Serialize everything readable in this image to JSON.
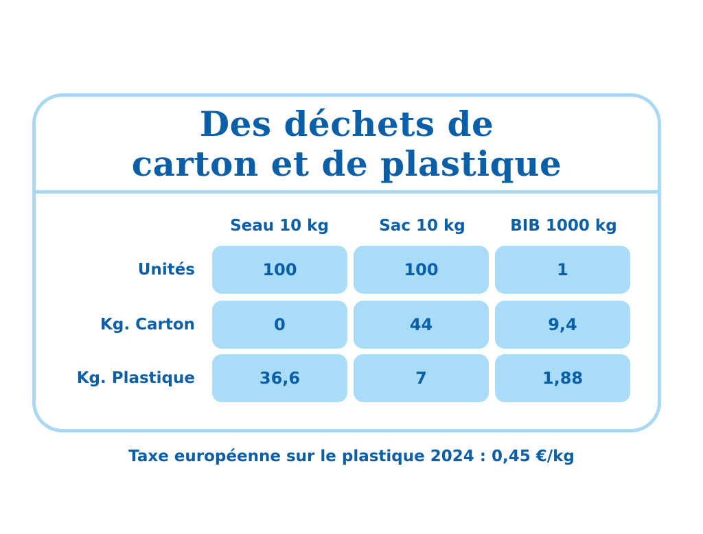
{
  "chart_data": {
    "type": "table",
    "title_lines": [
      "Des déchets de",
      "carton et de plastique"
    ],
    "columns": [
      "Seau 10 kg",
      "Sac 10 kg",
      "BIB 1000 kg"
    ],
    "rows": [
      {
        "label": "Unités",
        "values": [
          "100",
          "100",
          "1"
        ]
      },
      {
        "label": "Kg. Carton",
        "values": [
          "0",
          "44",
          "9,4"
        ]
      },
      {
        "label": "Kg. Plastique",
        "values": [
          "36,6",
          "7",
          "1,88"
        ]
      }
    ],
    "footnote": "Taxe européenne sur le plastique 2024 : 0,45 €/kg"
  },
  "colors": {
    "text": "#0a5fa8",
    "border": "#a8d8f4",
    "cell_fill": "#a9dcf6",
    "background": "#ffffff"
  }
}
